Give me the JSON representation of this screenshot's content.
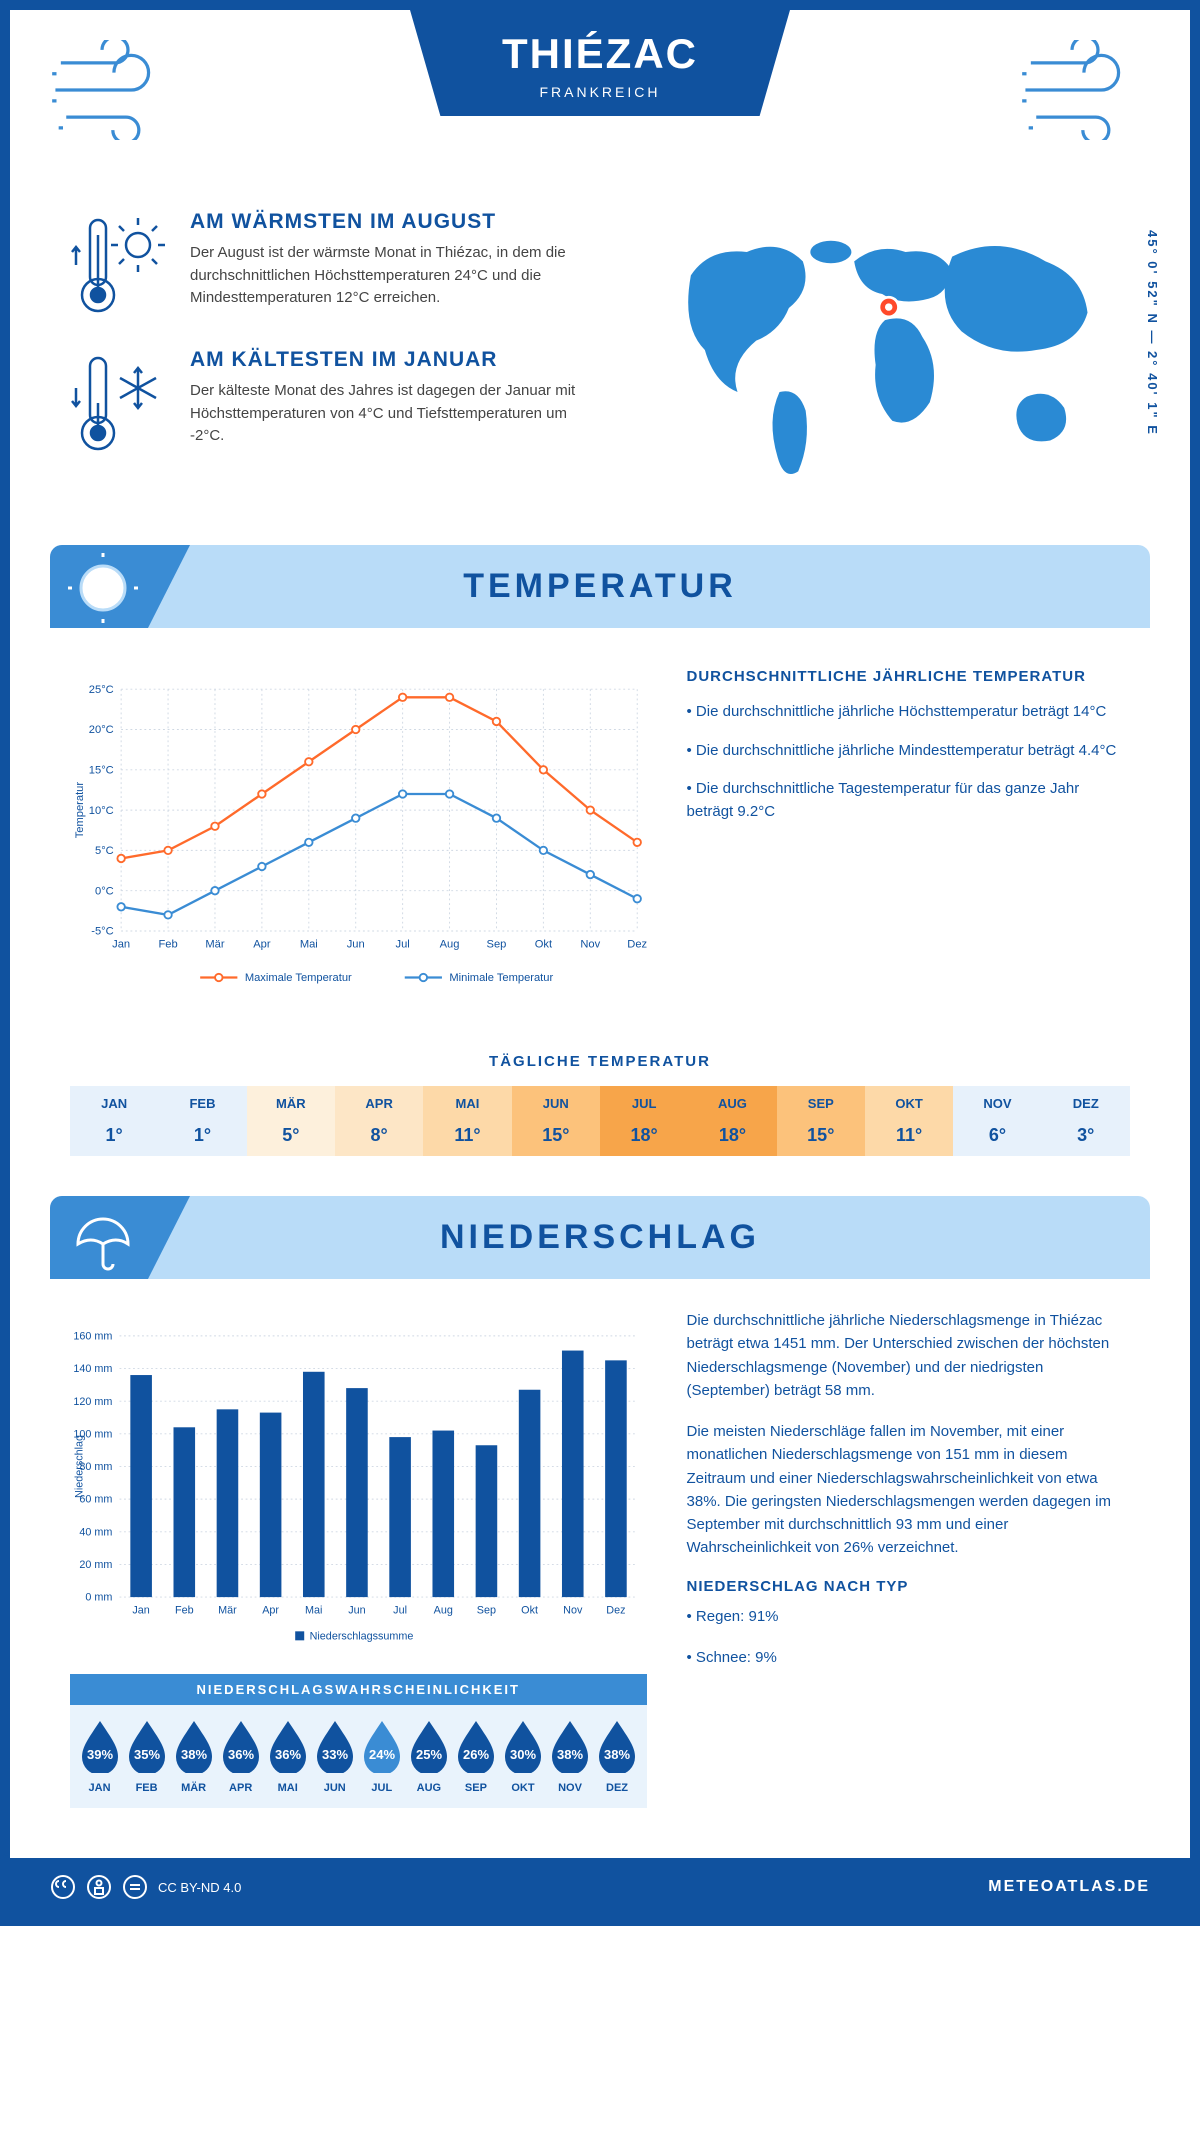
{
  "header": {
    "title": "THIÉZAC",
    "country": "FRANKREICH"
  },
  "coordinates": "45° 0' 52\" N — 2° 40' 1\" E",
  "warmest": {
    "title": "AM WÄRMSTEN IM AUGUST",
    "text": "Der August ist der wärmste Monat in Thiézac, in dem die durchschnittlichen Höchsttemperaturen 24°C und die Mindesttemperaturen 12°C erreichen."
  },
  "coldest": {
    "title": "AM KÄLTESTEN IM JANUAR",
    "text": "Der kälteste Monat des Jahres ist dagegen der Januar mit Höchsttemperaturen von 4°C und Tiefsttemperaturen um -2°C."
  },
  "section_temp": "TEMPERATUR",
  "section_precip": "NIEDERSCHLAG",
  "temp_chart": {
    "months": [
      "Jan",
      "Feb",
      "Mär",
      "Apr",
      "Mai",
      "Jun",
      "Jul",
      "Aug",
      "Sep",
      "Okt",
      "Nov",
      "Dez"
    ],
    "max": [
      4,
      5,
      8,
      12,
      16,
      20,
      24,
      24,
      21,
      15,
      10,
      6
    ],
    "min": [
      -2,
      -3,
      0,
      3,
      6,
      9,
      12,
      12,
      9,
      5,
      2,
      -1
    ],
    "max_color": "#ff6a2b",
    "min_color": "#3a8cd4",
    "ylabel": "Temperatur",
    "ymin": -5,
    "ymax": 25,
    "ystep": 5,
    "legend_max": "Maximale Temperatur",
    "legend_min": "Minimale Temperatur",
    "grid_color": "#cfd8e3"
  },
  "temp_stats": {
    "title": "DURCHSCHNITTLICHE JÄHRLICHE TEMPERATUR",
    "lines": [
      "• Die durchschnittliche jährliche Höchsttemperatur beträgt 14°C",
      "• Die durchschnittliche jährliche Mindesttemperatur beträgt 4.4°C",
      "• Die durchschnittliche Tagestemperatur für das ganze Jahr beträgt 9.2°C"
    ]
  },
  "daily": {
    "title": "TÄGLICHE TEMPERATUR",
    "months": [
      "JAN",
      "FEB",
      "MÄR",
      "APR",
      "MAI",
      "JUN",
      "JUL",
      "AUG",
      "SEP",
      "OKT",
      "NOV",
      "DEZ"
    ],
    "temps": [
      "1°",
      "1°",
      "5°",
      "8°",
      "11°",
      "15°",
      "18°",
      "18°",
      "15°",
      "11°",
      "6°",
      "3°"
    ],
    "colors": [
      "#e7f1fb",
      "#e7f1fb",
      "#fdf0dc",
      "#fde6c6",
      "#fdd9a8",
      "#fcc27b",
      "#f7a54a",
      "#f7a54a",
      "#fcc27b",
      "#fdd9a8",
      "#e7f1fb",
      "#e7f1fb"
    ]
  },
  "precip_chart": {
    "months": [
      "Jan",
      "Feb",
      "Mär",
      "Apr",
      "Mai",
      "Jun",
      "Jul",
      "Aug",
      "Sep",
      "Okt",
      "Nov",
      "Dez"
    ],
    "values": [
      136,
      104,
      115,
      113,
      138,
      128,
      98,
      102,
      93,
      127,
      151,
      145
    ],
    "bar_color": "#10529f",
    "ylabel": "Niederschlag",
    "ymax": 160,
    "ystep": 20,
    "legend": "Niederschlagssumme",
    "grid_color": "#cfd8e3"
  },
  "precip_text": {
    "p1": "Die durchschnittliche jährliche Niederschlagsmenge in Thiézac beträgt etwa 1451 mm. Der Unterschied zwischen der höchsten Niederschlagsmenge (November) und der niedrigsten (September) beträgt 58 mm.",
    "p2": "Die meisten Niederschläge fallen im November, mit einer monatlichen Niederschlagsmenge von 151 mm in diesem Zeitraum und einer Niederschlagswahrscheinlichkeit von etwa 38%. Die geringsten Niederschlagsmengen werden dagegen im September mit durchschnittlich 93 mm und einer Wahrscheinlichkeit von 26% verzeichnet.",
    "type_title": "NIEDERSCHLAG NACH TYP",
    "type_rain": "• Regen: 91%",
    "type_snow": "• Schnee: 9%"
  },
  "probability": {
    "title": "NIEDERSCHLAGSWAHRSCHEINLICHKEIT",
    "months": [
      "JAN",
      "FEB",
      "MÄR",
      "APR",
      "MAI",
      "JUN",
      "JUL",
      "AUG",
      "SEP",
      "OKT",
      "NOV",
      "DEZ"
    ],
    "values": [
      "39%",
      "35%",
      "38%",
      "36%",
      "36%",
      "33%",
      "24%",
      "25%",
      "26%",
      "30%",
      "38%",
      "38%"
    ],
    "dark": "#10529f",
    "light": "#3a8cd4",
    "min_index": 6
  },
  "footer": {
    "license": "CC BY-ND 4.0",
    "site": "METEOATLAS.DE"
  }
}
